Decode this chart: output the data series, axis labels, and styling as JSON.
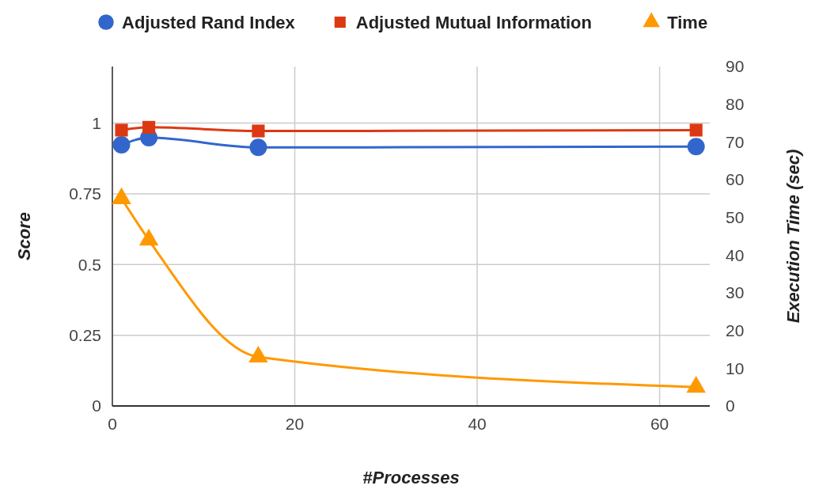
{
  "chart_data": {
    "type": "line",
    "xlabel": "#Processes",
    "ylabel": "Score",
    "y2label": "Execution Time (sec)",
    "x": [
      1,
      4,
      16,
      64
    ],
    "series": [
      {
        "name": "Adjusted Rand Index",
        "color": "#3366cc",
        "marker": "circle",
        "values": [
          0.923,
          0.948,
          0.914,
          0.917
        ]
      },
      {
        "name": "Adjusted Mutual Information",
        "color": "#dc3912",
        "marker": "square",
        "values": [
          0.975,
          0.985,
          0.972,
          0.975
        ]
      },
      {
        "name": "Time",
        "color": "#ff9900",
        "marker": "triangle",
        "axis": "y2",
        "values": [
          55,
          44,
          13,
          5
        ]
      }
    ],
    "xlim": [
      0,
      65.5
    ],
    "xticks": [
      0,
      20,
      40,
      60
    ],
    "ylim": [
      0,
      1.2
    ],
    "yticks": [
      0,
      0.25,
      0.5,
      0.75,
      1
    ],
    "y2lim": [
      0,
      90
    ],
    "y2ticks": [
      0,
      10,
      20,
      30,
      40,
      50,
      60,
      70,
      80,
      90
    ],
    "grid": true,
    "legend": "top",
    "line_style": "solid"
  }
}
